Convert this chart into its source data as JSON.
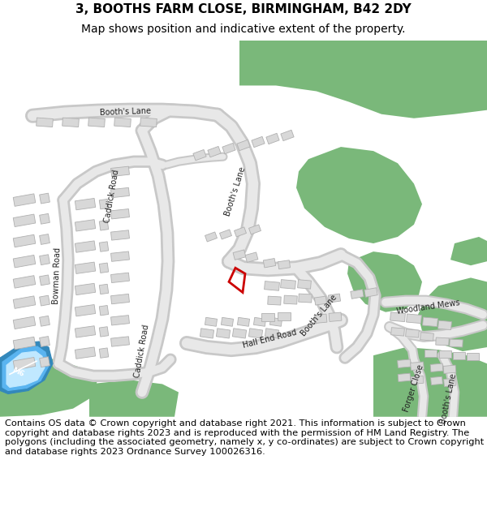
{
  "title_line1": "3, BOOTHS FARM CLOSE, BIRMINGHAM, B42 2DY",
  "title_line2": "Map shows position and indicative extent of the property.",
  "footer_text": "Contains OS data © Crown copyright and database right 2021. This information is subject to Crown copyright and database rights 2023 and is reproduced with the permission of HM Land Registry. The polygons (including the associated geometry, namely x, y co-ordinates) are subject to Crown copyright and database rights 2023 Ordnance Survey 100026316.",
  "bg_color": "#ffffff",
  "map_bg": "#f0f0f0",
  "green_color": "#7ab87a",
  "green_dark": "#5a9e5a",
  "road_fill": "#e8e8e8",
  "road_edge": "#c8c8c8",
  "bld_fill": "#d8d8d8",
  "bld_edge": "#b0b0b0",
  "blue_fill": "#5ab4f0",
  "blue_light": "#90d0ff",
  "blue_white": "#c0e8ff",
  "red_color": "#cc0000",
  "title_fs": 11,
  "sub_fs": 10,
  "footer_fs": 8.2,
  "label_fs": 7.0
}
